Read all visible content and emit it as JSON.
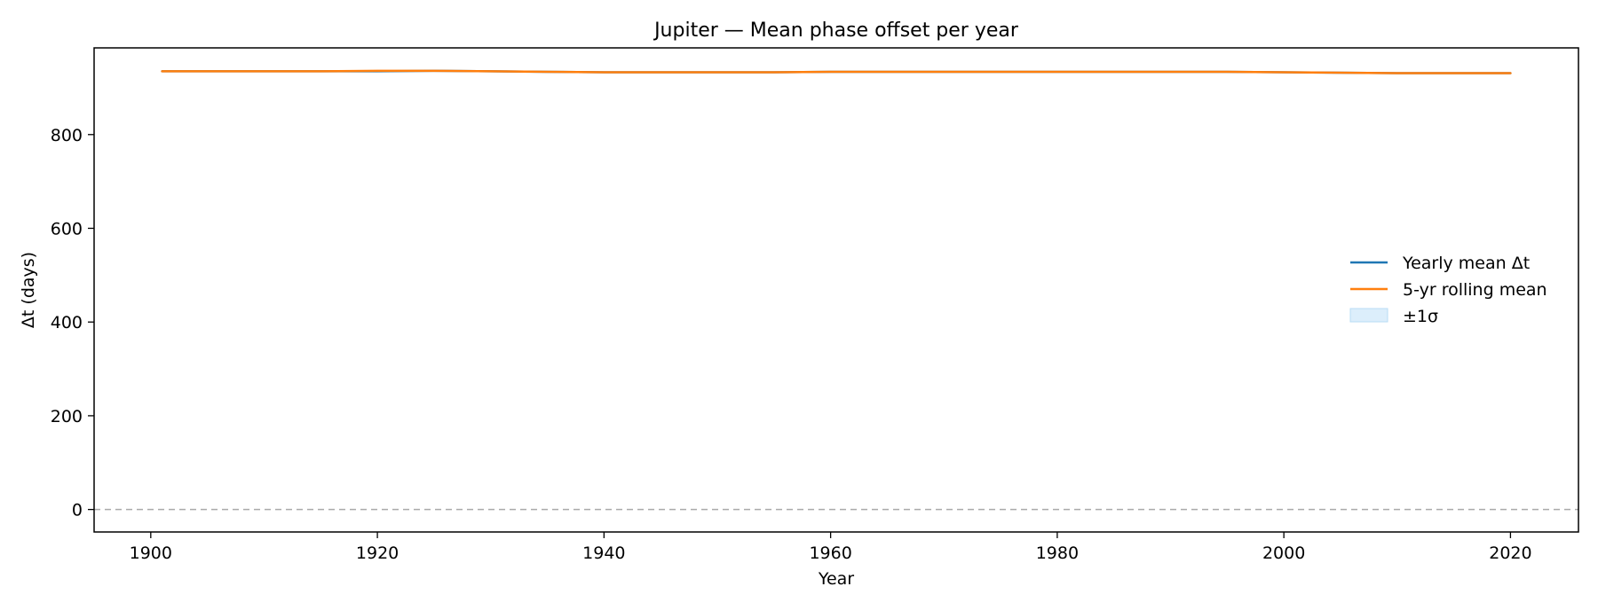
{
  "chart_data": {
    "type": "line",
    "title": "Jupiter — Mean phase offset per year",
    "xlabel": "Year",
    "ylabel": "Δt (days)",
    "xlim": [
      1895,
      2026
    ],
    "ylim": [
      -48,
      985
    ],
    "xticks": [
      1900,
      1920,
      1940,
      1960,
      1980,
      2000,
      2020
    ],
    "yticks": [
      0,
      200,
      400,
      600,
      800
    ],
    "grid": false,
    "reference_line": {
      "y": 0,
      "style": "dashed",
      "color": "#aaaaaa"
    },
    "legend": {
      "position": "center-right",
      "entries": [
        {
          "label": "Yearly mean Δt",
          "kind": "line",
          "color": "#1f77b4"
        },
        {
          "label": "5-yr rolling mean",
          "kind": "line",
          "color": "#ff7f0e"
        },
        {
          "label": "±1σ",
          "kind": "band",
          "color": "#dceefb"
        }
      ]
    },
    "series": [
      {
        "color": "#1f77b4",
        "x": [
          1901,
          1905,
          1910,
          1915,
          1920,
          1925,
          1930,
          1935,
          1940,
          1945,
          1950,
          1955,
          1960,
          1965,
          1970,
          1975,
          1980,
          1985,
          1990,
          1995,
          2000,
          2005,
          2010,
          2015,
          2020
        ],
        "values": [
          935,
          935,
          935,
          935,
          935,
          936,
          935,
          934,
          933,
          933,
          933,
          933,
          934,
          934,
          934,
          934,
          934,
          934,
          934,
          934,
          933,
          932,
          931,
          931,
          931
        ]
      },
      {
        "color": "#ff7f0e",
        "x": [
          1901,
          1905,
          1910,
          1915,
          1920,
          1925,
          1930,
          1935,
          1940,
          1945,
          1950,
          1955,
          1960,
          1965,
          1970,
          1975,
          1980,
          1985,
          1990,
          1995,
          2000,
          2005,
          2010,
          2015,
          2020
        ],
        "values": [
          935,
          935,
          935,
          935,
          936,
          936,
          935,
          934,
          933,
          933,
          933,
          933,
          934,
          934,
          934,
          934,
          934,
          934,
          934,
          934,
          933,
          932,
          931,
          931,
          931
        ]
      }
    ]
  }
}
